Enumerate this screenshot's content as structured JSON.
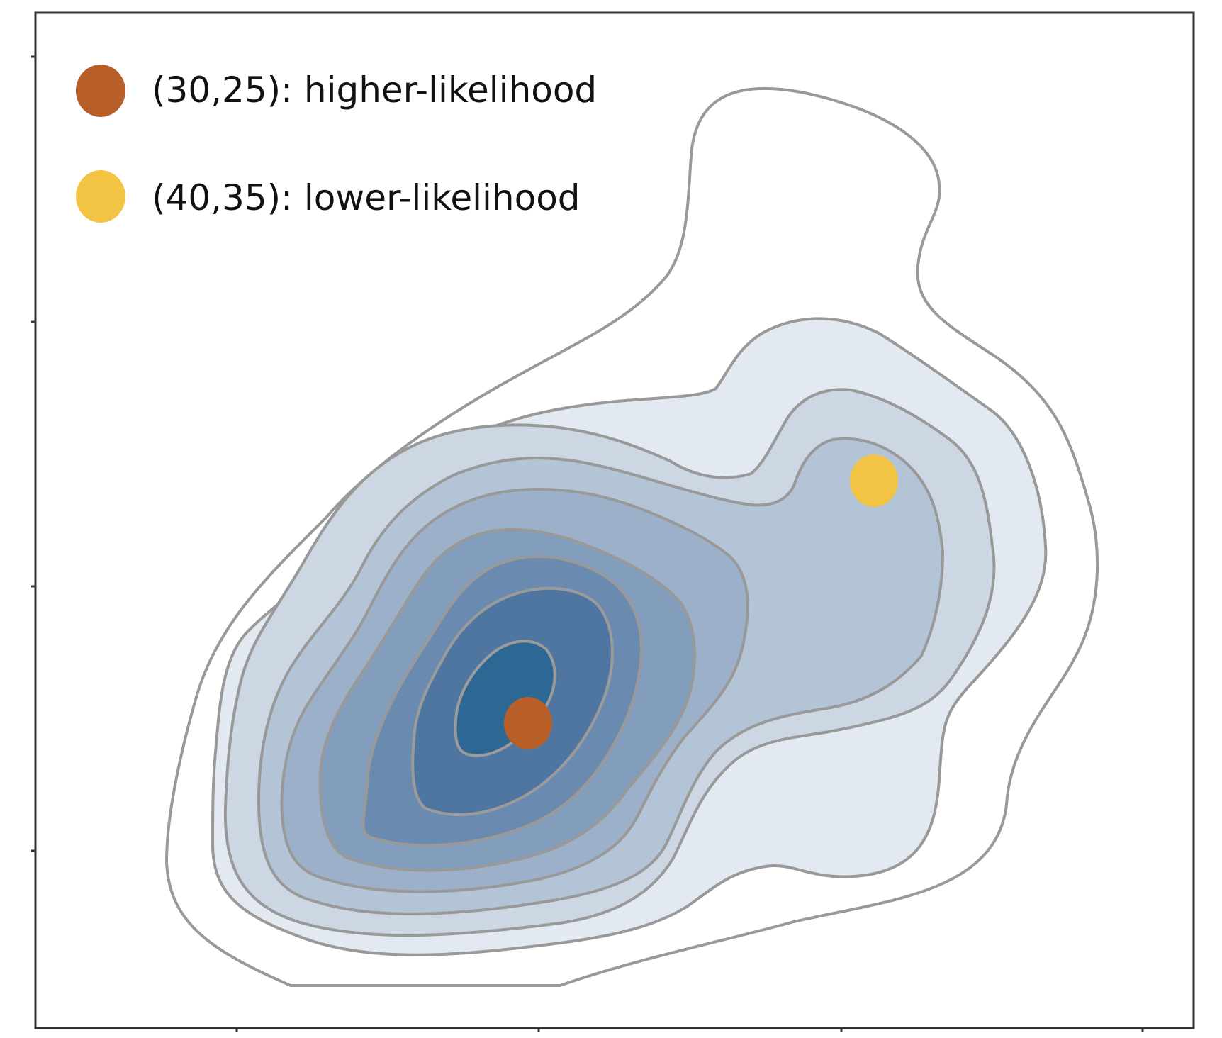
{
  "chart_data": {
    "type": "contour",
    "title": "",
    "xlabel": "",
    "ylabel": "",
    "grid": false,
    "legend_placement": "top-left",
    "contour_fill_colors": [
      "#ffffff",
      "#e3e9f1",
      "#ccd7e3",
      "#b4c4d7",
      "#9cb1c9",
      "#839ebd",
      "#6a8ab0",
      "#4f76a0",
      "#2d6794"
    ],
    "contour_line_color": "#999999",
    "series": [
      {
        "name": "(30,25): higher-likelihood",
        "x": 30,
        "y": 25,
        "color": "#b85f29"
      },
      {
        "name": "(40,35): lower-likelihood",
        "x": 40,
        "y": 35,
        "color": "#f3c443"
      }
    ]
  }
}
